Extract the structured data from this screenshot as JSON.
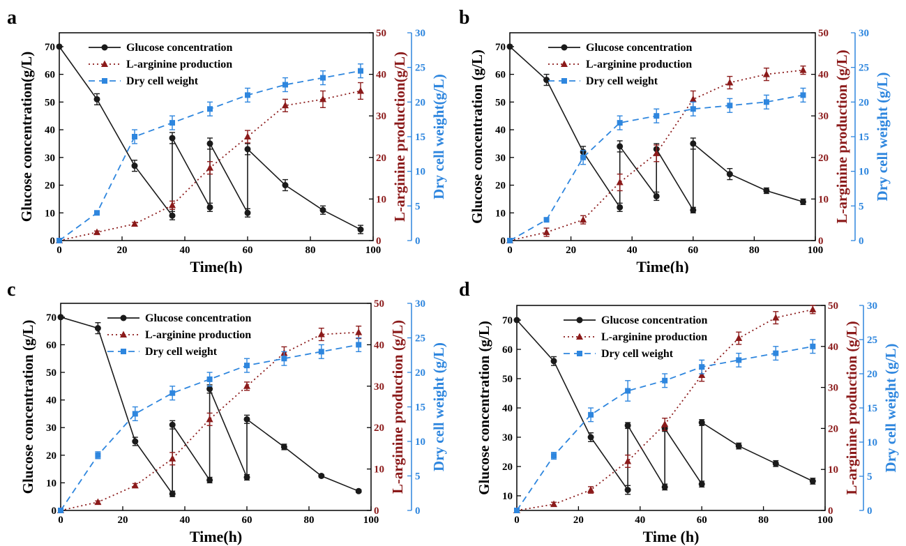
{
  "colors": {
    "glucose": "#1a1a1a",
    "arginine": "#8b1a1a",
    "dcw": "#2e86de",
    "axis": "#000000"
  },
  "chart_data": [
    {
      "type": "line",
      "panel_label": "a",
      "xlabel": "Time(h)",
      "ylabel_left": "Glucose concentration(g/L)",
      "ylabel_right1": "L-arginine production(g/L)",
      "ylabel_right2": "Dry cell weight(g/L)",
      "xlim": [
        0,
        100
      ],
      "xticks": [
        "0",
        "20",
        "40",
        "60",
        "80",
        "100"
      ],
      "ylim_left": [
        0,
        75
      ],
      "yticks_left": [
        "0",
        "10",
        "20",
        "30",
        "40",
        "50",
        "60",
        "70"
      ],
      "ylim_right1": [
        0,
        50
      ],
      "yticks_right1": [
        "0",
        "10",
        "20",
        "30",
        "40",
        "50"
      ],
      "ylim_right2": [
        0,
        30
      ],
      "yticks_right2": [
        "0",
        "5",
        "10",
        "15",
        "20",
        "25",
        "30"
      ],
      "legend": [
        "Glucose concentration",
        "L-arginine production",
        "Dry cell weight"
      ],
      "series": [
        {
          "name": "Glucose concentration",
          "axis": "left",
          "x": [
            0,
            12,
            24,
            36,
            36,
            48,
            48,
            60,
            60,
            72,
            84,
            96
          ],
          "y": [
            70,
            51,
            27,
            9,
            37,
            12,
            35,
            10,
            33,
            20,
            11,
            4
          ],
          "err": [
            0,
            2,
            2,
            1.5,
            2,
            1.5,
            2,
            1.5,
            2,
            2,
            1.5,
            1.5
          ]
        },
        {
          "name": "L-arginine production",
          "axis": "right1",
          "x": [
            0,
            12,
            24,
            36,
            48,
            60,
            72,
            84,
            96
          ],
          "y": [
            0,
            2,
            4,
            8.5,
            17.5,
            25,
            32.5,
            34,
            36
          ],
          "err": [
            0,
            0.3,
            0.4,
            1,
            1.5,
            1.5,
            1.5,
            2,
            2
          ]
        },
        {
          "name": "Dry cell weight",
          "axis": "right2",
          "x": [
            0,
            12,
            24,
            36,
            48,
            60,
            72,
            84,
            96
          ],
          "y": [
            0,
            4,
            15,
            17,
            19,
            21,
            22.5,
            23.5,
            24.5
          ],
          "err": [
            0,
            0,
            1,
            1,
            1,
            1,
            1,
            1,
            1
          ]
        }
      ]
    },
    {
      "type": "line",
      "panel_label": "b",
      "xlabel": "Time(h)",
      "ylabel_left": "Glucose concentration (g/L)",
      "ylabel_right1": "L-arginine production (g/L)",
      "ylabel_right2": "Dry cell weight (g/L)",
      "xlim": [
        0,
        100
      ],
      "xticks": [
        "0",
        "20",
        "40",
        "60",
        "80",
        "100"
      ],
      "ylim_left": [
        0,
        75
      ],
      "yticks_left": [
        "0",
        "10",
        "20",
        "30",
        "40",
        "50",
        "60",
        "70"
      ],
      "ylim_right1": [
        0,
        50
      ],
      "yticks_right1": [
        "0",
        "10",
        "20",
        "30",
        "40",
        "50"
      ],
      "ylim_right2": [
        0,
        30
      ],
      "yticks_right2": [
        "0",
        "5",
        "10",
        "15",
        "20",
        "25",
        "30"
      ],
      "legend": [
        "Glucose concentration",
        "L-arginine production",
        "Dry cell weight"
      ],
      "series": [
        {
          "name": "Glucose concentration",
          "axis": "left",
          "x": [
            0,
            12,
            24,
            36,
            36,
            48,
            48,
            60,
            60,
            72,
            84,
            96
          ],
          "y": [
            70,
            58,
            32,
            12,
            34,
            16,
            33,
            11,
            35,
            24,
            18,
            14
          ],
          "err": [
            0,
            2,
            2,
            1.5,
            2,
            1.5,
            2,
            1,
            2,
            2,
            1,
            1
          ]
        },
        {
          "name": "L-arginine production",
          "axis": "right1",
          "x": [
            0,
            12,
            24,
            36,
            48,
            60,
            72,
            84,
            96
          ],
          "y": [
            0,
            2,
            5,
            14,
            21,
            34,
            38,
            40,
            41
          ],
          "err": [
            0,
            1,
            1,
            2,
            2,
            2,
            1.5,
            1.5,
            1
          ]
        },
        {
          "name": "Dry cell weight",
          "axis": "right2",
          "x": [
            0,
            12,
            24,
            36,
            48,
            60,
            72,
            84,
            96
          ],
          "y": [
            0,
            3,
            12,
            17,
            18,
            19,
            19.5,
            20,
            21
          ],
          "err": [
            0,
            0,
            1,
            1,
            1,
            1,
            1,
            1,
            1
          ]
        }
      ]
    },
    {
      "type": "line",
      "panel_label": "c",
      "xlabel": "Time(h)",
      "ylabel_left": "Glucose concentration (g/L)",
      "ylabel_right1": "L-arginine production (g/L)",
      "ylabel_right2": "Dry cell weight (g/L)",
      "xlim": [
        0,
        100
      ],
      "xticks": [
        "0",
        "20",
        "40",
        "60",
        "80",
        "100"
      ],
      "ylim_left": [
        0,
        75
      ],
      "yticks_left": [
        "0",
        "10",
        "20",
        "30",
        "40",
        "50",
        "60",
        "70"
      ],
      "ylim_right1": [
        0,
        50
      ],
      "yticks_right1": [
        "0",
        "10",
        "20",
        "30",
        "40",
        "50"
      ],
      "ylim_right2": [
        0,
        30
      ],
      "yticks_right2": [
        "0",
        "5",
        "10",
        "15",
        "20",
        "25",
        "30"
      ],
      "legend": [
        "Glucose concentration",
        "L-arginine production",
        "Dry cell weight"
      ],
      "series": [
        {
          "name": "Glucose concentration",
          "axis": "left",
          "x": [
            0,
            12,
            24,
            36,
            36,
            48,
            48,
            60,
            60,
            72,
            84,
            96
          ],
          "y": [
            70,
            66,
            25,
            6,
            31,
            11,
            44,
            12,
            33,
            23,
            12.5,
            7
          ],
          "err": [
            0,
            2,
            1.5,
            1,
            1.5,
            1,
            1.5,
            1,
            1.5,
            1,
            0.5,
            0.5
          ]
        },
        {
          "name": "L-arginine production",
          "axis": "right1",
          "x": [
            0,
            12,
            24,
            36,
            48,
            60,
            72,
            84,
            96
          ],
          "y": [
            0,
            2,
            6,
            12.5,
            22,
            30,
            38,
            42.5,
            43
          ],
          "err": [
            0,
            0.3,
            0.5,
            1.5,
            1.5,
            1,
            1.5,
            1.5,
            1.5
          ]
        },
        {
          "name": "Dry cell weight",
          "axis": "right2",
          "x": [
            0,
            12,
            24,
            36,
            48,
            60,
            72,
            84,
            96
          ],
          "y": [
            0,
            8,
            14,
            17,
            19,
            21,
            22,
            23,
            24
          ],
          "err": [
            0,
            0.5,
            1,
            1,
            1,
            1,
            1,
            1,
            1
          ]
        }
      ]
    },
    {
      "type": "line",
      "panel_label": "d",
      "xlabel": "Time (h)",
      "ylabel_left": "Glucose concentration (g/L)",
      "ylabel_right1": "L-arginine production (g/L)",
      "ylabel_right2": "Dry cell weight (g/L)",
      "xlim": [
        0,
        100
      ],
      "xticks": [
        "0",
        "20",
        "40",
        "60",
        "80",
        "100"
      ],
      "ylim_left": [
        5,
        75
      ],
      "yticks_left": [
        "10",
        "20",
        "30",
        "40",
        "50",
        "60",
        "70"
      ],
      "ylim_right1": [
        0,
        50
      ],
      "yticks_right1": [
        "0",
        "10",
        "20",
        "30",
        "40",
        "50"
      ],
      "ylim_right2": [
        0,
        30
      ],
      "yticks_right2": [
        "0",
        "5",
        "10",
        "15",
        "20",
        "25",
        "30"
      ],
      "legend": [
        "Glucose concentration",
        "L-arginine production",
        "Dry cell weight"
      ],
      "series": [
        {
          "name": "Glucose concentration",
          "axis": "left",
          "x": [
            0,
            12,
            24,
            36,
            36,
            48,
            48,
            60,
            60,
            72,
            84,
            96
          ],
          "y": [
            70,
            56,
            30,
            12,
            34,
            13,
            33,
            14,
            35,
            27,
            21,
            15
          ],
          "err": [
            0,
            1.5,
            1.5,
            1.5,
            1,
            1,
            1,
            1,
            1,
            1,
            1,
            1
          ]
        },
        {
          "name": "L-arginine production",
          "axis": "right1",
          "x": [
            0,
            12,
            24,
            36,
            48,
            60,
            72,
            84,
            96
          ],
          "y": [
            0,
            1.5,
            5,
            12,
            21,
            33,
            42,
            47,
            49
          ],
          "err": [
            0,
            0.5,
            0.8,
            1.5,
            1.5,
            1.5,
            1.5,
            1.5,
            1
          ]
        },
        {
          "name": "Dry cell weight",
          "axis": "right2",
          "x": [
            0,
            12,
            24,
            36,
            48,
            60,
            72,
            84,
            96
          ],
          "y": [
            0,
            8,
            14,
            17.5,
            19,
            21,
            22,
            23,
            24
          ],
          "err": [
            0,
            0.5,
            1,
            1.5,
            1,
            1,
            1,
            1,
            1
          ]
        }
      ]
    }
  ]
}
